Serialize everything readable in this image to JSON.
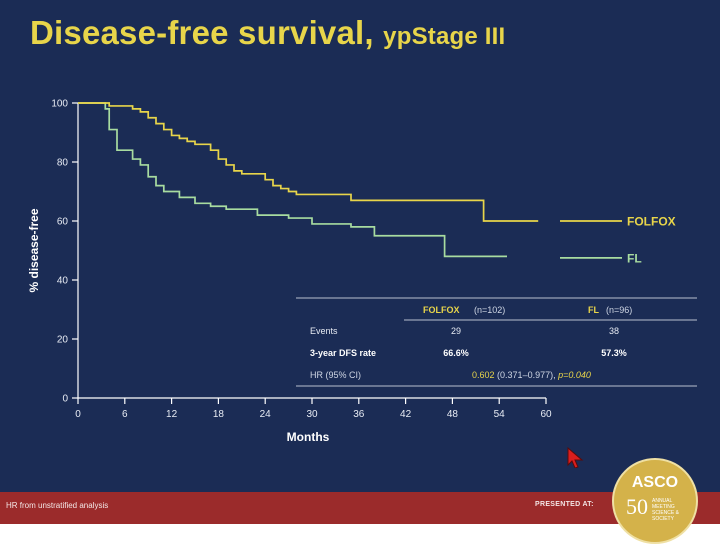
{
  "slide": {
    "title_main": "Disease-free survival,",
    "title_sub": "ypStage III",
    "footnote": "HR from unstratified analysis",
    "presented_at": "PRESENTED AT:",
    "logo": {
      "name": "ASCO",
      "number": "50",
      "line1": "ANNUAL",
      "line2": "MEETING",
      "line3": "SCIENCE & SOCIETY"
    }
  },
  "colors": {
    "folfox": "#e8d54a",
    "fl": "#a8dca0",
    "axis": "#ffffff",
    "table_line": "#b8c0d0"
  },
  "chart_data": {
    "type": "line",
    "xlabel": "Months",
    "ylabel": "% disease-free",
    "xlim": [
      0,
      60
    ],
    "ylim": [
      0,
      100
    ],
    "xticks": [
      0,
      6,
      12,
      18,
      24,
      30,
      36,
      42,
      48,
      54,
      60
    ],
    "yticks": [
      0,
      20,
      40,
      60,
      80,
      100
    ],
    "grid": false,
    "legend_position": "right",
    "series": [
      {
        "name": "FOLFOX",
        "step": true,
        "x": [
          0,
          3,
          4,
          7,
          8,
          9,
          10,
          11,
          12,
          13,
          14,
          15,
          17,
          18,
          19,
          20,
          21,
          24,
          25,
          26,
          27,
          28,
          35,
          52,
          59
        ],
        "y": [
          100,
          100,
          99,
          98,
          97,
          95,
          93,
          91,
          89,
          88,
          87,
          86,
          84,
          81,
          79,
          77,
          76,
          74,
          72,
          71,
          70,
          69,
          67,
          60,
          60
        ]
      },
      {
        "name": "FL",
        "step": true,
        "x": [
          0,
          3,
          3.5,
          4,
          5,
          7,
          8,
          9,
          10,
          11,
          13,
          15,
          17,
          19,
          23,
          27,
          30,
          35,
          38,
          47,
          55
        ],
        "y": [
          100,
          100,
          98,
          91,
          84,
          81,
          79,
          75,
          72,
          70,
          68,
          66,
          65,
          64,
          62,
          61,
          59,
          58,
          55,
          48,
          48
        ]
      }
    ],
    "table": {
      "headers": [
        "",
        "FOLFOX",
        "(n=102)",
        "FL",
        "(n=96)"
      ],
      "rows": [
        {
          "label": "Events",
          "folfox": "29",
          "fl": "38"
        },
        {
          "label": "3-year DFS rate",
          "folfox": "66.6%",
          "fl": "57.3%"
        }
      ],
      "hr_label": "HR (95% CI)",
      "hr_value": "0.602",
      "hr_ci": "(0.371–0.977),",
      "hr_p": "p=0.040"
    }
  }
}
